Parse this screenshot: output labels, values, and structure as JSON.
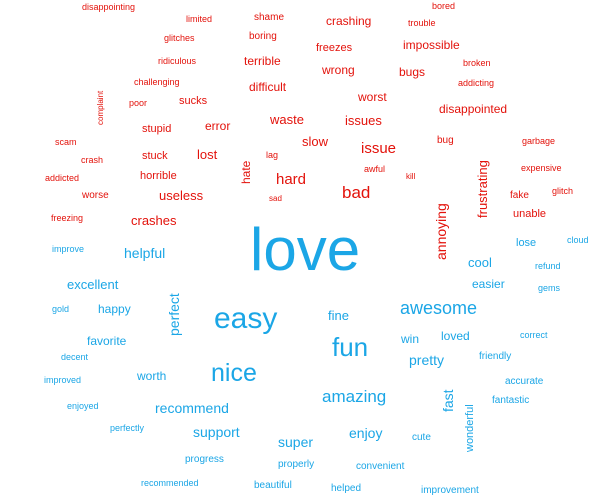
{
  "colors": {
    "negative": "#e3120b",
    "positive": "#1ba6e6",
    "background": "#ffffff"
  },
  "negative_words": [
    "disappointing",
    "limited",
    "shame",
    "crashing",
    "bored",
    "trouble",
    "glitches",
    "boring",
    "freezes",
    "impossible",
    "ridiculous",
    "terrible",
    "wrong",
    "bugs",
    "broken",
    "challenging",
    "difficult",
    "addicting",
    "complaint",
    "poor",
    "sucks",
    "worst",
    "disappointed",
    "waste",
    "issues",
    "scam",
    "stupid",
    "error",
    "slow",
    "bug",
    "garbage",
    "crash",
    "stuck",
    "lost",
    "hate",
    "lag",
    "issue",
    "frustrating",
    "expensive",
    "addicted",
    "horrible",
    "awful",
    "kill",
    "worse",
    "useless",
    "hard",
    "bad",
    "fake",
    "glitch",
    "sad",
    "annoying",
    "freezing",
    "crashes",
    "unable"
  ],
  "positive_words": [
    "love",
    "cloud",
    "improve",
    "helpful",
    "lose",
    "cool",
    "refund",
    "excellent",
    "easier",
    "gems",
    "gold",
    "happy",
    "perfect",
    "easy",
    "fine",
    "awesome",
    "correct",
    "favorite",
    "win",
    "loved",
    "fun",
    "decent",
    "pretty",
    "friendly",
    "nice",
    "worth",
    "improved",
    "accurate",
    "amazing",
    "enjoyed",
    "fast",
    "recommend",
    "fantastic",
    "wonderful",
    "perfectly",
    "support",
    "enjoy",
    "super",
    "cute",
    "progress",
    "properly",
    "convenient",
    "recommended",
    "beautiful",
    "helped",
    "improvement"
  ]
}
